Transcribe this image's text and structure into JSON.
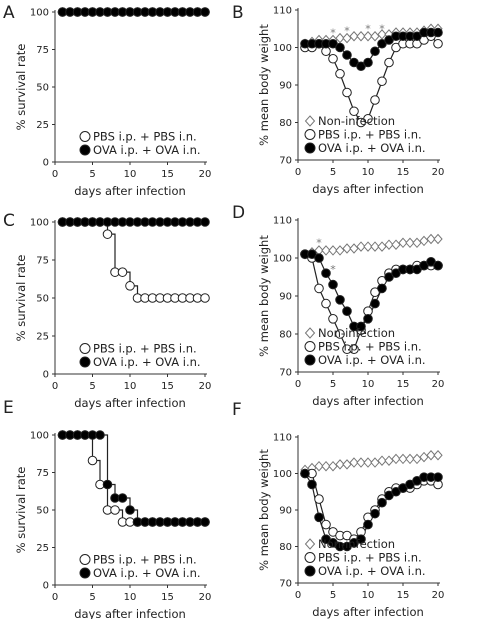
{
  "colors": {
    "open_marker": "#ffffff",
    "filled_marker": "#000000",
    "stroke": "#222222",
    "axis": "#333333",
    "non_infection_line": "#aaaaaa"
  },
  "chart_data": [
    {
      "letter": "A",
      "type": "line",
      "step": true,
      "xlabel": "days after infection",
      "ylabel": "% survival rate",
      "xlim": [
        0,
        20
      ],
      "ylim": [
        0,
        100
      ],
      "xticks": [
        0,
        5,
        10,
        15,
        20
      ],
      "yticks": [
        0,
        25,
        50,
        75,
        100
      ],
      "legend_position": "bottom-right",
      "sig_marks": [],
      "series": [
        {
          "name": "PBS i.p. + PBS i.n.",
          "marker": "open-circle",
          "x": [
            1,
            2,
            3,
            4,
            5,
            6,
            7,
            8,
            9,
            10,
            11,
            12,
            13,
            14,
            15,
            16,
            17,
            18,
            19,
            20
          ],
          "values": [
            100,
            100,
            100,
            100,
            100,
            100,
            100,
            100,
            100,
            100,
            100,
            100,
            100,
            100,
            100,
            100,
            100,
            100,
            100,
            100
          ]
        },
        {
          "name": "OVA i.p. + OVA i.n.",
          "marker": "filled-circle",
          "x": [
            1,
            2,
            3,
            4,
            5,
            6,
            7,
            8,
            9,
            10,
            11,
            12,
            13,
            14,
            15,
            16,
            17,
            18,
            19,
            20
          ],
          "values": [
            100,
            100,
            100,
            100,
            100,
            100,
            100,
            100,
            100,
            100,
            100,
            100,
            100,
            100,
            100,
            100,
            100,
            100,
            100,
            100
          ]
        }
      ]
    },
    {
      "letter": "B",
      "type": "line",
      "xlabel": "days after infection",
      "ylabel": "% mean body weight",
      "xlim": [
        0,
        20
      ],
      "ylim": [
        70,
        110
      ],
      "xticks": [
        0,
        5,
        10,
        15,
        20
      ],
      "yticks": [
        70,
        80,
        90,
        100,
        110
      ],
      "legend_position": "bottom-right",
      "sig_marks": [
        {
          "x": 5,
          "y": 103,
          "text": "*"
        },
        {
          "x": 7,
          "y": 103.5,
          "text": "*"
        },
        {
          "x": 10,
          "y": 104,
          "text": "*"
        },
        {
          "x": 12,
          "y": 104,
          "text": "*"
        }
      ],
      "series": [
        {
          "name": "Non-infection",
          "marker": "open-diamond",
          "x": [
            1,
            2,
            3,
            4,
            5,
            6,
            7,
            8,
            9,
            10,
            11,
            12,
            13,
            14,
            15,
            16,
            17,
            18,
            19,
            20
          ],
          "values": [
            101,
            101.5,
            102,
            102,
            102,
            102.5,
            102.5,
            103,
            103,
            103,
            103,
            103.5,
            103.5,
            104,
            104,
            104,
            104,
            104.5,
            105,
            105
          ]
        },
        {
          "name": "PBS i.p. + PBS i.n.",
          "marker": "open-circle",
          "x": [
            1,
            2,
            3,
            4,
            5,
            6,
            7,
            8,
            9,
            10,
            11,
            12,
            13,
            14,
            15,
            16,
            17,
            18,
            19,
            20
          ],
          "values": [
            100,
            100,
            101,
            99,
            97,
            93,
            88,
            83,
            80,
            81,
            86,
            91,
            96,
            100,
            101,
            101,
            101,
            102,
            103,
            101
          ]
        },
        {
          "name": "OVA i.p. + OVA i.n.",
          "marker": "filled-circle",
          "x": [
            1,
            2,
            3,
            4,
            5,
            6,
            7,
            8,
            9,
            10,
            11,
            12,
            13,
            14,
            15,
            16,
            17,
            18,
            19,
            20
          ],
          "values": [
            101,
            101,
            101,
            101,
            101,
            100,
            98,
            96,
            95,
            96,
            99,
            101,
            102,
            103,
            103,
            103,
            103,
            104,
            104,
            104
          ]
        }
      ]
    },
    {
      "letter": "C",
      "type": "line",
      "step": true,
      "xlabel": "days after infection",
      "ylabel": "% survival rate",
      "xlim": [
        0,
        20
      ],
      "ylim": [
        0,
        100
      ],
      "xticks": [
        0,
        5,
        10,
        15,
        20
      ],
      "yticks": [
        0,
        25,
        50,
        75,
        100
      ],
      "legend_position": "bottom-right",
      "sig_marks": [],
      "series": [
        {
          "name": "PBS i.p. + PBS i.n.",
          "marker": "open-circle",
          "x": [
            1,
            2,
            3,
            4,
            5,
            6,
            7,
            8,
            9,
            10,
            11,
            12,
            13,
            14,
            15,
            16,
            17,
            18,
            19,
            20
          ],
          "values": [
            100,
            100,
            100,
            100,
            100,
            100,
            92,
            67,
            67,
            58,
            50,
            50,
            50,
            50,
            50,
            50,
            50,
            50,
            50,
            50
          ]
        },
        {
          "name": "OVA i.p. + OVA i.n.",
          "marker": "filled-circle",
          "x": [
            1,
            2,
            3,
            4,
            5,
            6,
            7,
            8,
            9,
            10,
            11,
            12,
            13,
            14,
            15,
            16,
            17,
            18,
            19,
            20
          ],
          "values": [
            100,
            100,
            100,
            100,
            100,
            100,
            100,
            100,
            100,
            100,
            100,
            100,
            100,
            100,
            100,
            100,
            100,
            100,
            100,
            100
          ]
        }
      ]
    },
    {
      "letter": "D",
      "type": "line",
      "xlabel": "days after infection",
      "ylabel": "% mean body weight",
      "xlim": [
        0,
        20
      ],
      "ylim": [
        70,
        110
      ],
      "xticks": [
        0,
        5,
        10,
        15,
        20
      ],
      "yticks": [
        70,
        80,
        90,
        100,
        110
      ],
      "legend_position": "bottom-right",
      "sig_marks": [
        {
          "x": 3,
          "y": 103,
          "text": "*"
        },
        {
          "x": 5,
          "y": 96,
          "text": "*"
        }
      ],
      "series": [
        {
          "name": "Non-infection",
          "marker": "open-diamond",
          "x": [
            1,
            2,
            3,
            4,
            5,
            6,
            7,
            8,
            9,
            10,
            11,
            12,
            13,
            14,
            15,
            16,
            17,
            18,
            19,
            20
          ],
          "values": [
            101,
            101.5,
            102,
            102,
            102,
            102,
            102.5,
            102.5,
            103,
            103,
            103,
            103,
            103.5,
            103.5,
            104,
            104,
            104,
            104.5,
            105,
            105
          ]
        },
        {
          "name": "PBS i.p. + PBS i.n.",
          "marker": "open-circle",
          "x": [
            1,
            2,
            3,
            4,
            5,
            6,
            7,
            8,
            9,
            10,
            11,
            12,
            13,
            14,
            15,
            16,
            17,
            18,
            19,
            20
          ],
          "values": [
            101,
            100,
            92,
            88,
            84,
            80,
            76,
            76,
            81,
            86,
            91,
            94,
            96,
            97,
            97,
            97,
            98,
            98,
            98,
            98
          ]
        },
        {
          "name": "OVA i.p. + OVA i.n.",
          "marker": "filled-circle",
          "x": [
            1,
            2,
            3,
            4,
            5,
            6,
            7,
            8,
            9,
            10,
            11,
            12,
            13,
            14,
            15,
            16,
            17,
            18,
            19,
            20
          ],
          "values": [
            101,
            101,
            100,
            96,
            93,
            89,
            86,
            82,
            82,
            84,
            88,
            92,
            95,
            96,
            97,
            97,
            97,
            98,
            99,
            98
          ]
        }
      ]
    },
    {
      "letter": "E",
      "type": "line",
      "step": true,
      "xlabel": "days after infection",
      "ylabel": "% survival rate",
      "xlim": [
        0,
        20
      ],
      "ylim": [
        0,
        100
      ],
      "xticks": [
        0,
        5,
        10,
        15,
        20
      ],
      "yticks": [
        0,
        25,
        50,
        75,
        100
      ],
      "legend_position": "bottom-right",
      "sig_marks": [],
      "series": [
        {
          "name": "PBS i.p. + PBS i.n.",
          "marker": "open-circle",
          "x": [
            1,
            2,
            3,
            4,
            5,
            6,
            7,
            8,
            9,
            10,
            11,
            12,
            13,
            14,
            15,
            16,
            17,
            18,
            19,
            20
          ],
          "values": [
            100,
            100,
            100,
            100,
            83,
            67,
            50,
            50,
            42,
            42,
            42,
            42,
            42,
            42,
            42,
            42,
            42,
            42,
            42,
            42
          ]
        },
        {
          "name": "OVA i.p. + OVA i.n.",
          "marker": "filled-circle",
          "x": [
            1,
            2,
            3,
            4,
            5,
            6,
            7,
            8,
            9,
            10,
            11,
            12,
            13,
            14,
            15,
            16,
            17,
            18,
            19,
            20
          ],
          "values": [
            100,
            100,
            100,
            100,
            100,
            100,
            67,
            58,
            58,
            50,
            42,
            42,
            42,
            42,
            42,
            42,
            42,
            42,
            42,
            42
          ]
        }
      ]
    },
    {
      "letter": "F",
      "type": "line",
      "xlabel": "days after infection",
      "ylabel": "% mean body weight",
      "xlim": [
        0,
        20
      ],
      "ylim": [
        70,
        110
      ],
      "xticks": [
        0,
        5,
        10,
        15,
        20
      ],
      "yticks": [
        70,
        80,
        90,
        100,
        110
      ],
      "legend_position": "bottom-right",
      "sig_marks": [],
      "series": [
        {
          "name": "Non-infection",
          "marker": "open-diamond",
          "x": [
            1,
            2,
            3,
            4,
            5,
            6,
            7,
            8,
            9,
            10,
            11,
            12,
            13,
            14,
            15,
            16,
            17,
            18,
            19,
            20
          ],
          "values": [
            101,
            101.5,
            102,
            102,
            102,
            102.5,
            102.5,
            103,
            103,
            103,
            103,
            103.5,
            103.5,
            104,
            104,
            104,
            104,
            104.5,
            105,
            105
          ]
        },
        {
          "name": "PBS i.p. + PBS i.n.",
          "marker": "open-circle",
          "x": [
            1,
            2,
            3,
            4,
            5,
            6,
            7,
            8,
            9,
            10,
            11,
            12,
            13,
            14,
            15,
            16,
            17,
            18,
            19,
            20
          ],
          "values": [
            100,
            100,
            93,
            86,
            84,
            83,
            83,
            82,
            84,
            88,
            90,
            93,
            95,
            96,
            96,
            96,
            97,
            98,
            98,
            97
          ]
        },
        {
          "name": "OVA i.p. + OVA i.n.",
          "marker": "filled-circle",
          "x": [
            1,
            2,
            3,
            4,
            5,
            6,
            7,
            8,
            9,
            10,
            11,
            12,
            13,
            14,
            15,
            16,
            17,
            18,
            19,
            20
          ],
          "values": [
            100,
            97,
            88,
            82,
            81,
            80,
            80,
            81,
            82,
            86,
            89,
            92,
            94,
            95,
            96,
            97,
            98,
            99,
            99,
            99
          ]
        }
      ]
    }
  ]
}
